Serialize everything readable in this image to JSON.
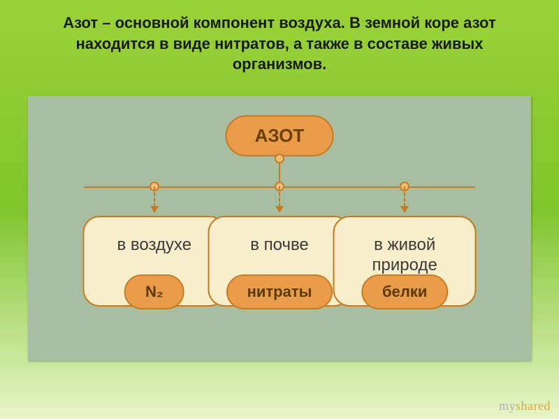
{
  "title": {
    "text": "Азот – основной компонент воздуха. В земной коре азот находится в виде нитратов, а также в составе живых организмов.",
    "fontsize": 22,
    "color": "#1a1a1a"
  },
  "panel": {
    "background": "#a7bfa0"
  },
  "root": {
    "label": "АЗОТ",
    "fontsize": 26,
    "bg": "#e99c4a",
    "border": "#c97a20",
    "text_color": "#6a3f00"
  },
  "connectors": {
    "line_color": "#c97a20",
    "dot_fill": "#f0c07a",
    "dot_border": "#c97a20",
    "arrow_color": "#c97a20"
  },
  "children": {
    "box_bg": "#f7eecb",
    "box_border": "#c97a20",
    "box_fontsize": 24,
    "label_bg": "#e99c4a",
    "label_border": "#c97a20",
    "label_fontsize": 22,
    "positions_pct": [
      18,
      50,
      82
    ],
    "items": [
      {
        "text": "в воздухе",
        "label": "N₂"
      },
      {
        "text": "в почве",
        "label": "нитраты"
      },
      {
        "text": "в живой природе",
        "label": "белки"
      }
    ]
  },
  "watermark": {
    "part1": "my",
    "part2": "shared",
    "fontsize": 18
  }
}
